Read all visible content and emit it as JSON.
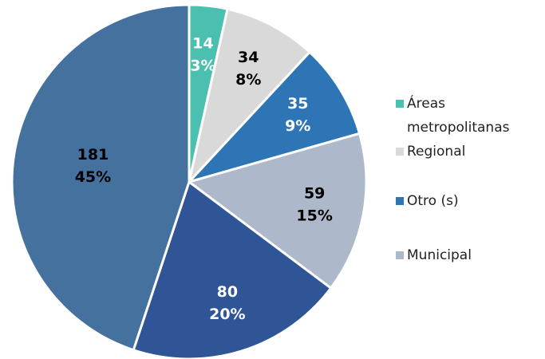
{
  "chart_data": {
    "type": "pie",
    "categories": [
      "Áreas metropolitanas",
      "Regional",
      "Otro (s)",
      "Municipal",
      null,
      null
    ],
    "values": [
      14,
      34,
      35,
      59,
      80,
      181
    ],
    "percentages": [
      3,
      8,
      9,
      15,
      20,
      45
    ],
    "percentage_labels": [
      "3%",
      "8%",
      "9%",
      "15%",
      "20%",
      "45%"
    ],
    "colors": [
      "#4bbfb0",
      "#d9d9d9",
      "#2e75b6",
      "#adb9ca",
      "#2f5597",
      "#44719e"
    ],
    "label_colors": [
      "#ffffff",
      "#000000",
      "#ffffff",
      "#000000",
      "#ffffff",
      "#000000"
    ],
    "legend": "right"
  }
}
